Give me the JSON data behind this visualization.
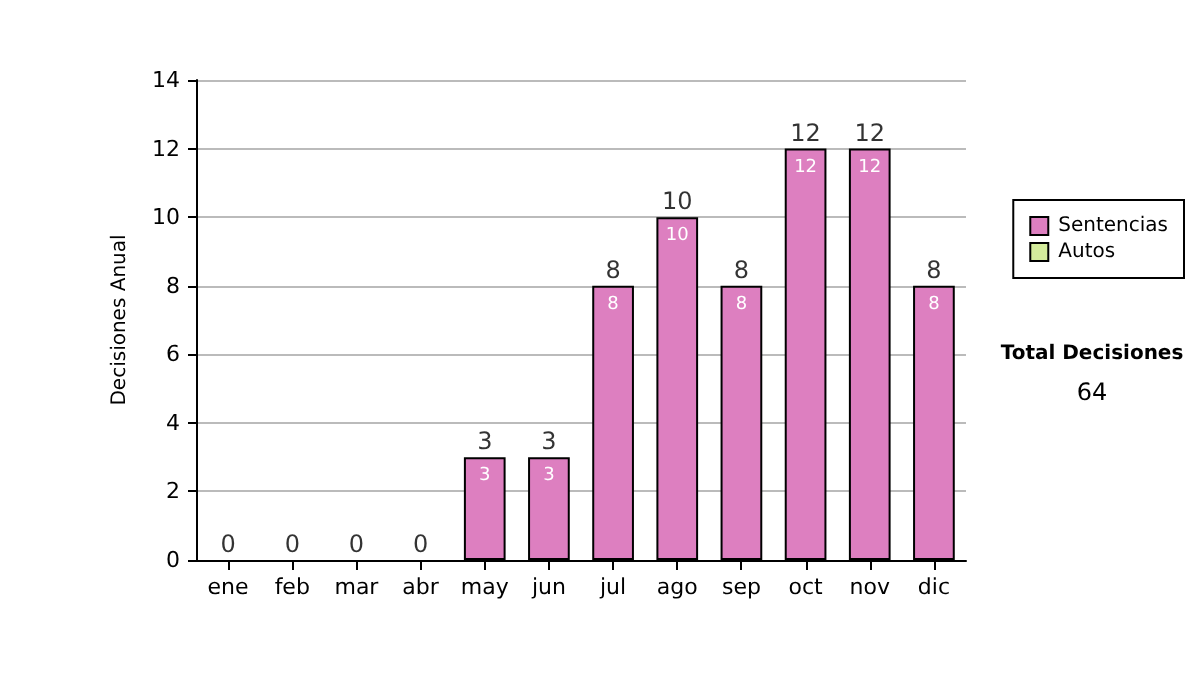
{
  "chart_data": {
    "type": "bar",
    "stacked": true,
    "ylabel": "Decisiones Anual",
    "categories": [
      "ene",
      "feb",
      "mar",
      "abr",
      "may",
      "jun",
      "jul",
      "ago",
      "sep",
      "oct",
      "nov",
      "dic"
    ],
    "series": [
      {
        "name": "Sentencias",
        "color": "#dd7fc0",
        "values": [
          0,
          0,
          0,
          0,
          3,
          3,
          8,
          10,
          8,
          12,
          12,
          8
        ],
        "value_labels": [
          null,
          null,
          null,
          null,
          "3",
          "3",
          "8",
          "10",
          "8",
          "12",
          "12",
          "8"
        ]
      },
      {
        "name": "Autos",
        "color": "#d4ec9c",
        "values": [
          0,
          0,
          0,
          0,
          0,
          0,
          0,
          0,
          0,
          0,
          0,
          0
        ]
      }
    ],
    "totals": [
      "0",
      "0",
      "0",
      "0",
      "3",
      "3",
      "8",
      "10",
      "8",
      "12",
      "12",
      "8"
    ],
    "ylim": [
      0,
      14
    ],
    "yticks": [
      0,
      2,
      4,
      6,
      8,
      10,
      12,
      14
    ],
    "grid": "y",
    "legend": "right",
    "annotations": [
      "Total Decisiones",
      "64"
    ]
  }
}
